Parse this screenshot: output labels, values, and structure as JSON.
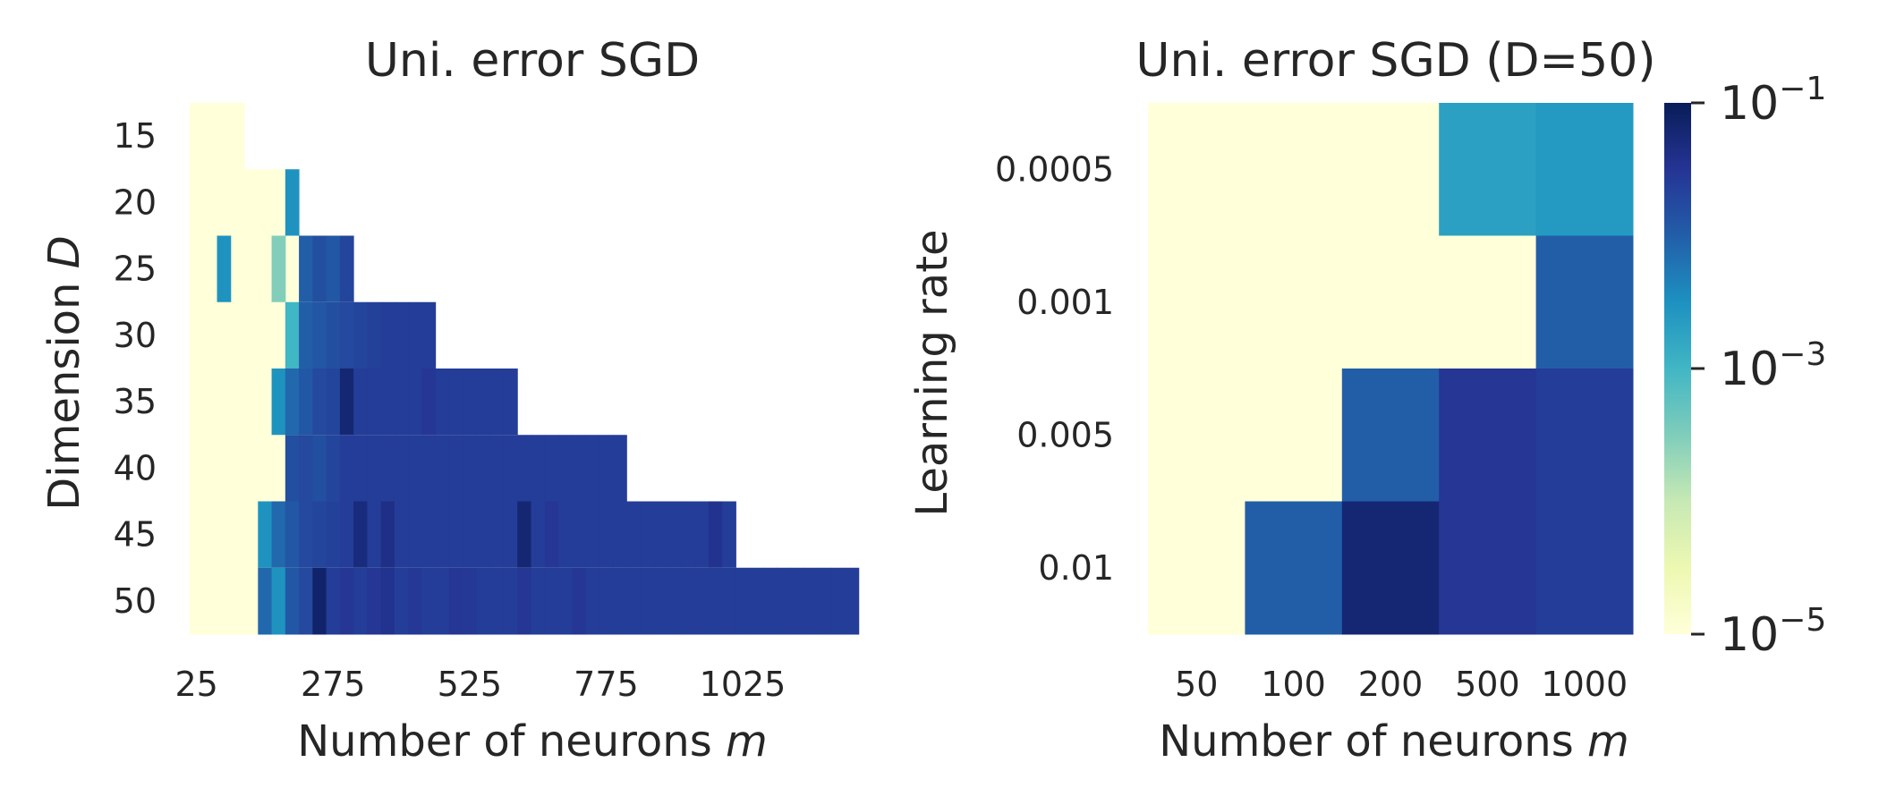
{
  "chart_data": [
    {
      "type": "heatmap",
      "title": "Uni. error SGD",
      "xlabel": "Number of neurons m",
      "ylabel": "Dimension D",
      "x_ticks": [
        "25",
        "275",
        "525",
        "775",
        "1025"
      ],
      "y_ticks": [
        "15",
        "20",
        "25",
        "30",
        "35",
        "40",
        "45",
        "50"
      ],
      "x_range": [
        25,
        1250
      ],
      "x_step": 25,
      "scale": "log",
      "vmin": 1e-05,
      "vmax": 0.1,
      "background_value": 1e-05,
      "rows": [
        {
          "D": 15,
          "m_max": 100,
          "cells": []
        },
        {
          "D": 20,
          "m_max": 200,
          "cells": [
            [
              200,
              0.003
            ]
          ]
        },
        {
          "D": 25,
          "m_max": 300,
          "cells": [
            [
              75,
              0.003
            ],
            [
              175,
              0.0003
            ],
            [
              225,
              0.01
            ],
            [
              250,
              0.015
            ],
            [
              275,
              0.012
            ],
            [
              300,
              0.02
            ]
          ]
        },
        {
          "D": 30,
          "m_max": 450,
          "cells": [
            [
              200,
              0.001
            ],
            [
              225,
              0.01
            ],
            [
              250,
              0.012
            ],
            [
              275,
              0.015
            ],
            [
              300,
              0.018
            ],
            [
              325,
              0.02
            ],
            [
              350,
              0.022
            ],
            [
              375,
              0.025
            ],
            [
              400,
              0.025
            ],
            [
              425,
              0.025
            ],
            [
              450,
              0.025
            ]
          ]
        },
        {
          "D": 35,
          "m_max": 600,
          "cells": [
            [
              175,
              0.003
            ],
            [
              200,
              0.008
            ],
            [
              225,
              0.012
            ],
            [
              250,
              0.018
            ],
            [
              275,
              0.02
            ],
            [
              300,
              0.06
            ],
            [
              325,
              0.025
            ],
            [
              350,
              0.025
            ],
            [
              375,
              0.025
            ],
            [
              400,
              0.025
            ],
            [
              425,
              0.025
            ],
            [
              450,
              0.03
            ],
            [
              475,
              0.025
            ],
            [
              500,
              0.025
            ],
            [
              525,
              0.025
            ],
            [
              550,
              0.025
            ],
            [
              575,
              0.025
            ],
            [
              600,
              0.025
            ]
          ]
        },
        {
          "D": 40,
          "m_max": 800,
          "cells": [
            [
              200,
              0.015
            ],
            [
              225,
              0.018
            ],
            [
              250,
              0.015
            ],
            [
              275,
              0.02
            ],
            [
              300,
              0.025
            ],
            [
              325,
              0.025
            ],
            [
              350,
              0.025
            ],
            [
              375,
              0.025
            ],
            [
              400,
              0.025
            ],
            [
              425,
              0.025
            ],
            [
              450,
              0.025
            ],
            [
              475,
              0.025
            ],
            [
              500,
              0.025
            ],
            [
              525,
              0.025
            ],
            [
              550,
              0.025
            ],
            [
              575,
              0.025
            ],
            [
              600,
              0.025
            ],
            [
              625,
              0.025
            ],
            [
              650,
              0.025
            ],
            [
              675,
              0.025
            ],
            [
              700,
              0.025
            ],
            [
              725,
              0.025
            ],
            [
              750,
              0.025
            ],
            [
              775,
              0.025
            ],
            [
              800,
              0.025
            ]
          ]
        },
        {
          "D": 45,
          "m_max": 1000,
          "cells": [
            [
              150,
              0.003
            ],
            [
              175,
              0.008
            ],
            [
              200,
              0.012
            ],
            [
              225,
              0.018
            ],
            [
              250,
              0.02
            ],
            [
              275,
              0.022
            ],
            [
              300,
              0.025
            ],
            [
              325,
              0.05
            ],
            [
              350,
              0.025
            ],
            [
              375,
              0.04
            ],
            [
              400,
              0.025
            ],
            [
              425,
              0.025
            ],
            [
              450,
              0.025
            ],
            [
              475,
              0.025
            ],
            [
              500,
              0.025
            ],
            [
              525,
              0.025
            ],
            [
              550,
              0.025
            ],
            [
              575,
              0.025
            ],
            [
              600,
              0.025
            ],
            [
              625,
              0.06
            ],
            [
              650,
              0.025
            ],
            [
              675,
              0.03
            ],
            [
              700,
              0.025
            ],
            [
              725,
              0.025
            ],
            [
              750,
              0.025
            ],
            [
              775,
              0.025
            ],
            [
              800,
              0.025
            ],
            [
              825,
              0.025
            ],
            [
              850,
              0.025
            ],
            [
              875,
              0.025
            ],
            [
              900,
              0.025
            ],
            [
              925,
              0.025
            ],
            [
              950,
              0.025
            ],
            [
              975,
              0.035
            ],
            [
              1000,
              0.025
            ]
          ]
        },
        {
          "D": 50,
          "m_max": 1225,
          "cells": [
            [
              150,
              0.008
            ],
            [
              175,
              0.003
            ],
            [
              200,
              0.012
            ],
            [
              225,
              0.018
            ],
            [
              250,
              0.07
            ],
            [
              275,
              0.025
            ],
            [
              300,
              0.03
            ],
            [
              325,
              0.025
            ],
            [
              350,
              0.03
            ],
            [
              375,
              0.035
            ],
            [
              400,
              0.025
            ],
            [
              425,
              0.028
            ],
            [
              450,
              0.025
            ],
            [
              475,
              0.025
            ],
            [
              500,
              0.03
            ],
            [
              525,
              0.028
            ],
            [
              550,
              0.025
            ],
            [
              575,
              0.025
            ],
            [
              600,
              0.025
            ],
            [
              625,
              0.03
            ],
            [
              650,
              0.025
            ],
            [
              675,
              0.025
            ],
            [
              700,
              0.025
            ],
            [
              725,
              0.03
            ],
            [
              750,
              0.025
            ],
            [
              775,
              0.025
            ],
            [
              800,
              0.025
            ],
            [
              825,
              0.025
            ],
            [
              850,
              0.025
            ],
            [
              875,
              0.025
            ],
            [
              900,
              0.025
            ],
            [
              925,
              0.025
            ],
            [
              950,
              0.025
            ],
            [
              975,
              0.025
            ],
            [
              1000,
              0.025
            ],
            [
              1025,
              0.025
            ],
            [
              1050,
              0.025
            ],
            [
              1075,
              0.025
            ],
            [
              1100,
              0.025
            ],
            [
              1125,
              0.025
            ],
            [
              1150,
              0.025
            ],
            [
              1175,
              0.025
            ],
            [
              1200,
              0.025
            ],
            [
              1225,
              0.025
            ]
          ]
        }
      ]
    },
    {
      "type": "heatmap",
      "title": "Uni. error SGD (D=50)",
      "xlabel": "Number of neurons m",
      "ylabel": "Learning rate",
      "x_categories": [
        "50",
        "100",
        "200",
        "500",
        "1000"
      ],
      "y_categories": [
        "0.0005",
        "0.001",
        "0.005",
        "0.01"
      ],
      "scale": "log",
      "vmin": 1e-05,
      "vmax": 0.1,
      "values": [
        [
          1e-05,
          1e-05,
          1e-05,
          0.002,
          0.0025
        ],
        [
          1e-05,
          1e-05,
          1e-05,
          1e-05,
          0.01
        ],
        [
          1e-05,
          1e-05,
          0.01,
          0.03,
          0.025
        ],
        [
          1e-05,
          0.01,
          0.06,
          0.03,
          0.025
        ]
      ]
    }
  ],
  "colorbar": {
    "colormap": "YlGnBu",
    "scale": "log",
    "tick_labels": [
      {
        "value": 0.1,
        "base": "10",
        "exp": "−1"
      },
      {
        "value": 0.001,
        "base": "10",
        "exp": "−3"
      },
      {
        "value": 1e-05,
        "base": "10",
        "exp": "−5"
      }
    ],
    "colors": [
      "#ffffd9",
      "#edf8b1",
      "#c7e9b4",
      "#7fcdbb",
      "#41b6c4",
      "#1d91c0",
      "#225ea8",
      "#253494",
      "#081d58"
    ]
  }
}
